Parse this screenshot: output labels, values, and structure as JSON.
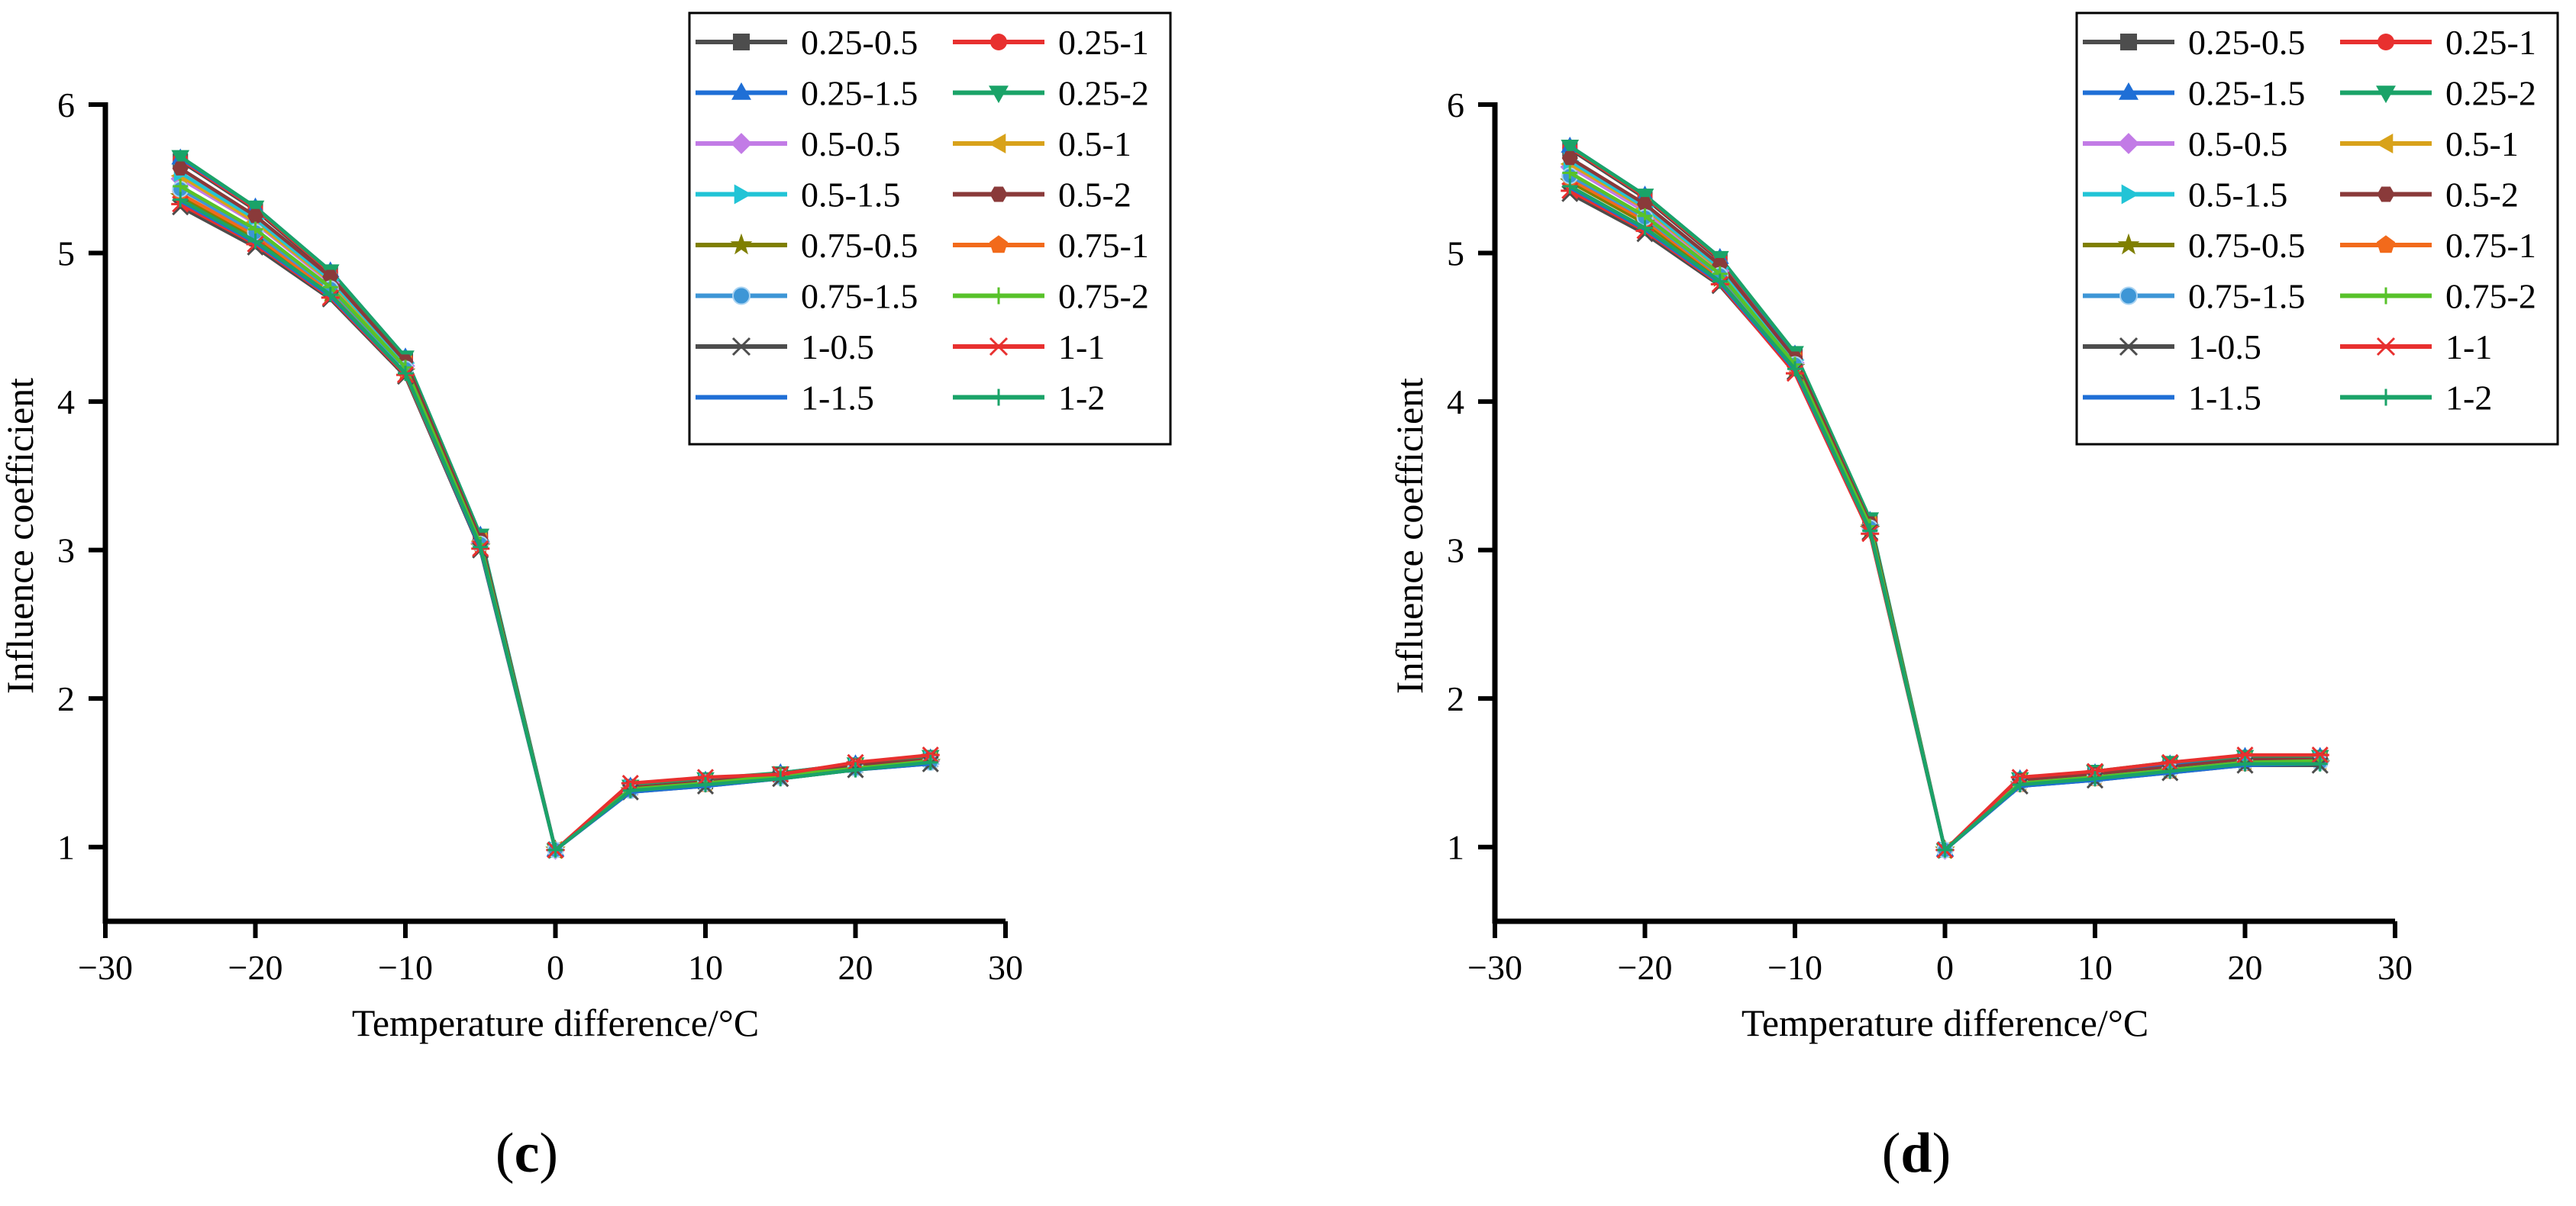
{
  "figure": {
    "panels": [
      {
        "label_open": "(",
        "label_letter": "c",
        "label_close": ")"
      },
      {
        "label_open": "(",
        "label_letter": "d",
        "label_close": ")"
      }
    ]
  },
  "series_styles": [
    {
      "name": "0.25-0.5",
      "color": "#4d4d4d",
      "marker": "square"
    },
    {
      "name": "0.25-1",
      "color": "#e8302f",
      "marker": "circle"
    },
    {
      "name": "0.25-1.5",
      "color": "#1f6fd6",
      "marker": "triangle-up"
    },
    {
      "name": "0.25-2",
      "color": "#1aa368",
      "marker": "triangle-down"
    },
    {
      "name": "0.5-0.5",
      "color": "#c27be6",
      "marker": "diamond"
    },
    {
      "name": "0.5-1",
      "color": "#d8a21a",
      "marker": "triangle-left"
    },
    {
      "name": "0.5-1.5",
      "color": "#22c4d6",
      "marker": "triangle-right"
    },
    {
      "name": "0.5-2",
      "color": "#8a3a3a",
      "marker": "hexagon"
    },
    {
      "name": "0.75-0.5",
      "color": "#7f7f00",
      "marker": "star"
    },
    {
      "name": "0.75-1",
      "color": "#f26a1b",
      "marker": "pentagon"
    },
    {
      "name": "0.75-1.5",
      "color": "#3d96d6",
      "marker": "sphere"
    },
    {
      "name": "0.75-2",
      "color": "#58c22a",
      "marker": "plus"
    },
    {
      "name": "1-0.5",
      "color": "#4d4d4d",
      "marker": "x"
    },
    {
      "name": "1-1",
      "color": "#e8302f",
      "marker": "asterisk"
    },
    {
      "name": "1-1.5",
      "color": "#1f6fd6",
      "marker": "none"
    },
    {
      "name": "1-2",
      "color": "#1aa368",
      "marker": "plus"
    }
  ],
  "chart_data": [
    {
      "type": "line",
      "panel": "c",
      "title": "",
      "xlabel": "Temperature difference/°C",
      "ylabel": "Influence coefficient",
      "xlim": [
        -30,
        30
      ],
      "ylim": [
        0.5,
        6
      ],
      "xticks": [
        -30,
        -20,
        -10,
        0,
        10,
        20,
        30
      ],
      "yticks": [
        1,
        2,
        3,
        4,
        5,
        6
      ],
      "x": [
        -25,
        -20,
        -15,
        -10,
        -5,
        0,
        5,
        10,
        15,
        20,
        25
      ],
      "series": [
        {
          "name": "0.25-0.5",
          "values": [
            5.62,
            5.29,
            4.86,
            4.28,
            3.08,
            0.98,
            1.4,
            1.44,
            1.49,
            1.55,
            1.59
          ]
        },
        {
          "name": "0.25-1",
          "values": [
            5.63,
            5.3,
            4.87,
            4.29,
            3.09,
            0.98,
            1.41,
            1.45,
            1.49,
            1.55,
            1.6
          ]
        },
        {
          "name": "0.25-1.5",
          "values": [
            5.64,
            5.31,
            4.88,
            4.3,
            3.1,
            0.98,
            1.41,
            1.45,
            1.5,
            1.56,
            1.6
          ]
        },
        {
          "name": "0.25-2",
          "values": [
            5.65,
            5.31,
            4.88,
            4.3,
            3.1,
            0.98,
            1.41,
            1.46,
            1.5,
            1.56,
            1.61
          ]
        },
        {
          "name": "0.5-0.5",
          "values": [
            5.5,
            5.2,
            4.8,
            4.24,
            3.05,
            0.98,
            1.39,
            1.43,
            1.48,
            1.54,
            1.58
          ]
        },
        {
          "name": "0.5-1",
          "values": [
            5.52,
            5.21,
            4.81,
            4.25,
            3.06,
            0.98,
            1.39,
            1.43,
            1.48,
            1.54,
            1.58
          ]
        },
        {
          "name": "0.5-1.5",
          "values": [
            5.54,
            5.23,
            4.82,
            4.26,
            3.06,
            0.98,
            1.4,
            1.44,
            1.48,
            1.54,
            1.59
          ]
        },
        {
          "name": "0.5-2",
          "values": [
            5.57,
            5.25,
            4.84,
            4.27,
            3.07,
            0.98,
            1.4,
            1.44,
            1.49,
            1.55,
            1.59
          ]
        },
        {
          "name": "0.75-0.5",
          "values": [
            5.38,
            5.1,
            4.73,
            4.2,
            3.02,
            0.98,
            1.38,
            1.42,
            1.47,
            1.53,
            1.57
          ]
        },
        {
          "name": "0.75-1",
          "values": [
            5.4,
            5.12,
            4.74,
            4.21,
            3.03,
            0.98,
            1.38,
            1.42,
            1.47,
            1.53,
            1.57
          ]
        },
        {
          "name": "0.75-1.5",
          "values": [
            5.43,
            5.14,
            4.76,
            4.22,
            3.04,
            0.98,
            1.38,
            1.43,
            1.47,
            1.53,
            1.57
          ]
        },
        {
          "name": "0.75-2",
          "values": [
            5.45,
            5.16,
            4.77,
            4.23,
            3.04,
            0.98,
            1.39,
            1.43,
            1.48,
            1.53,
            1.58
          ]
        },
        {
          "name": "1-0.5",
          "values": [
            5.31,
            5.04,
            4.69,
            4.17,
            3.0,
            0.98,
            1.37,
            1.41,
            1.46,
            1.52,
            1.56
          ]
        },
        {
          "name": "1-1",
          "values": [
            5.33,
            5.06,
            4.7,
            4.18,
            3.01,
            0.98,
            1.43,
            1.47,
            1.49,
            1.57,
            1.62
          ]
        },
        {
          "name": "1-1.5",
          "values": [
            5.35,
            5.07,
            4.71,
            4.19,
            3.01,
            0.98,
            1.37,
            1.41,
            1.46,
            1.52,
            1.56
          ]
        },
        {
          "name": "1-2",
          "values": [
            5.36,
            5.08,
            4.72,
            4.19,
            3.02,
            0.98,
            1.38,
            1.42,
            1.46,
            1.52,
            1.57
          ]
        }
      ]
    },
    {
      "type": "line",
      "panel": "d",
      "title": "",
      "xlabel": "Temperature difference/°C",
      "ylabel": "Influence coefficient",
      "xlim": [
        -30,
        30
      ],
      "ylim": [
        0.5,
        6
      ],
      "xticks": [
        -30,
        -20,
        -10,
        0,
        10,
        20,
        30
      ],
      "yticks": [
        1,
        2,
        3,
        4,
        5,
        6
      ],
      "x": [
        -25,
        -20,
        -15,
        -10,
        -5,
        0,
        5,
        10,
        15,
        20,
        25
      ],
      "series": [
        {
          "name": "0.25-0.5",
          "values": [
            5.7,
            5.37,
            4.95,
            4.31,
            3.19,
            0.98,
            1.45,
            1.49,
            1.54,
            1.59,
            1.6
          ]
        },
        {
          "name": "0.25-1",
          "values": [
            5.71,
            5.38,
            4.96,
            4.32,
            3.2,
            0.98,
            1.45,
            1.5,
            1.55,
            1.6,
            1.6
          ]
        },
        {
          "name": "0.25-1.5",
          "values": [
            5.72,
            5.39,
            4.97,
            4.32,
            3.2,
            0.98,
            1.46,
            1.5,
            1.56,
            1.61,
            1.61
          ]
        },
        {
          "name": "0.25-2",
          "values": [
            5.72,
            5.39,
            4.97,
            4.33,
            3.21,
            0.98,
            1.46,
            1.51,
            1.57,
            1.61,
            1.61
          ]
        },
        {
          "name": "0.5-0.5",
          "values": [
            5.58,
            5.28,
            4.88,
            4.26,
            3.16,
            0.98,
            1.43,
            1.47,
            1.52,
            1.57,
            1.58
          ]
        },
        {
          "name": "0.5-1",
          "values": [
            5.6,
            5.3,
            4.89,
            4.27,
            3.17,
            0.98,
            1.44,
            1.48,
            1.53,
            1.58,
            1.58
          ]
        },
        {
          "name": "0.5-1.5",
          "values": [
            5.62,
            5.31,
            4.9,
            4.28,
            3.17,
            0.98,
            1.44,
            1.48,
            1.53,
            1.58,
            1.59
          ]
        },
        {
          "name": "0.5-2",
          "values": [
            5.64,
            5.33,
            4.92,
            4.29,
            3.18,
            0.98,
            1.45,
            1.49,
            1.54,
            1.59,
            1.59
          ]
        },
        {
          "name": "0.75-0.5",
          "values": [
            5.48,
            5.2,
            4.83,
            4.23,
            3.14,
            0.98,
            1.42,
            1.46,
            1.51,
            1.56,
            1.56
          ]
        },
        {
          "name": "0.75-1",
          "values": [
            5.5,
            5.22,
            4.84,
            4.24,
            3.15,
            0.98,
            1.42,
            1.46,
            1.51,
            1.56,
            1.57
          ]
        },
        {
          "name": "0.75-1.5",
          "values": [
            5.52,
            5.24,
            4.85,
            4.25,
            3.15,
            0.98,
            1.43,
            1.47,
            1.52,
            1.57,
            1.57
          ]
        },
        {
          "name": "0.75-2",
          "values": [
            5.54,
            5.25,
            4.86,
            4.25,
            3.16,
            0.98,
            1.43,
            1.47,
            1.52,
            1.57,
            1.58
          ]
        },
        {
          "name": "1-0.5",
          "values": [
            5.4,
            5.13,
            4.78,
            4.2,
            3.12,
            0.98,
            1.41,
            1.45,
            1.5,
            1.55,
            1.55
          ]
        },
        {
          "name": "1-1",
          "values": [
            5.42,
            5.15,
            4.79,
            4.19,
            3.11,
            0.98,
            1.47,
            1.51,
            1.57,
            1.62,
            1.62
          ]
        },
        {
          "name": "1-1.5",
          "values": [
            5.44,
            5.16,
            4.8,
            4.21,
            3.13,
            0.98,
            1.41,
            1.45,
            1.5,
            1.55,
            1.56
          ]
        },
        {
          "name": "1-2",
          "values": [
            5.45,
            5.17,
            4.81,
            4.22,
            3.13,
            0.98,
            1.42,
            1.46,
            1.51,
            1.56,
            1.56
          ]
        }
      ]
    }
  ]
}
